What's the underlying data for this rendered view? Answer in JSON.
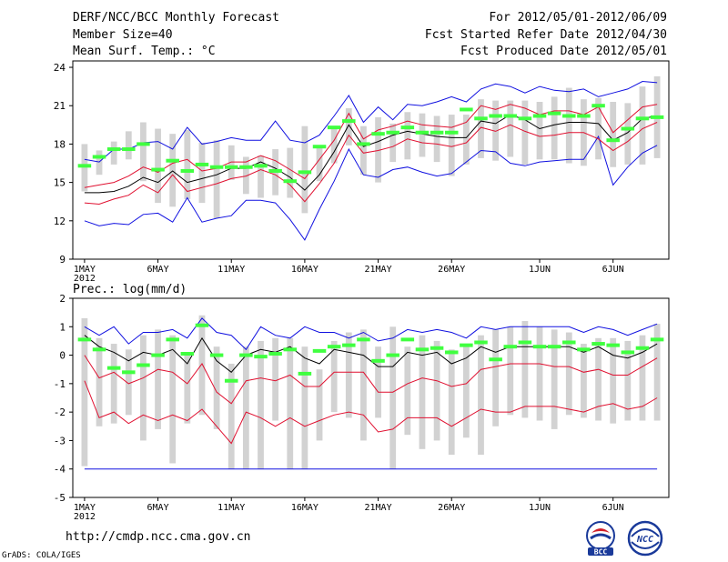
{
  "header": {
    "title": "DERF/NCC/BCC Monthly Forecast",
    "member_size": "Member Size=40",
    "variable": "Mean Surf. Temp.: °C",
    "period": "For 2012/05/01-2012/06/09",
    "started": "Fcst Started Refer Date 2012/04/30",
    "produced": "Fcst Produced Date 2012/05/01"
  },
  "footer": {
    "url": "http://cmdp.ncc.cma.gov.cn",
    "credit": "GrADS: COLA/IGES",
    "logo_bcc_text": "BCC",
    "logo_ncc_text": "NCC"
  },
  "colors": {
    "max_line": "#1010e0",
    "min_line": "#1010e0",
    "mean_line": "#000000",
    "std_line": "#e01030",
    "box": "#d2d2d2",
    "obs_marker": "#40ff40"
  },
  "chart_data": [
    {
      "type": "line",
      "title": "Mean Surf. Temp.: °C",
      "x_tick_labels": [
        "1MAY",
        "6MAY",
        "11MAY",
        "16MAY",
        "21MAY",
        "26MAY",
        "1JUN",
        "6JUN"
      ],
      "x_year_label": "2012",
      "x_tick_days": [
        1,
        6,
        11,
        16,
        21,
        26,
        32,
        37
      ],
      "days": 40,
      "ylim": [
        9,
        24.5
      ],
      "yticks": [
        9,
        12,
        15,
        18,
        21,
        24
      ],
      "series": [
        {
          "name": "max",
          "values": [
            16.8,
            16.6,
            17.6,
            17.6,
            18.1,
            18.2,
            17.6,
            19.3,
            18.0,
            18.2,
            18.5,
            18.3,
            18.3,
            19.8,
            18.3,
            18.1,
            18.7,
            20.2,
            21.8,
            19.7,
            20.9,
            19.9,
            21.1,
            21.0,
            21.3,
            21.7,
            21.3,
            22.3,
            22.7,
            22.5,
            22.0,
            22.5,
            22.2,
            22.1,
            22.3,
            21.7,
            22.0,
            22.3,
            22.9,
            22.8
          ]
        },
        {
          "name": "mean_plus_std",
          "values": [
            14.6,
            14.8,
            15.0,
            15.5,
            16.2,
            15.8,
            16.5,
            16.8,
            15.9,
            16.1,
            16.6,
            16.6,
            17.1,
            16.7,
            16.0,
            15.3,
            16.8,
            18.3,
            20.4,
            18.4,
            19.1,
            19.4,
            19.8,
            19.5,
            19.4,
            19.3,
            19.7,
            21.0,
            20.7,
            21.1,
            20.8,
            20.3,
            20.6,
            20.6,
            20.3,
            20.9,
            18.9,
            19.9,
            20.9,
            21.1
          ]
        },
        {
          "name": "mean",
          "values": [
            14.2,
            14.2,
            14.3,
            14.7,
            15.4,
            15.0,
            15.9,
            15.0,
            15.3,
            15.6,
            16.1,
            16.1,
            16.6,
            16.1,
            15.4,
            14.4,
            15.6,
            17.4,
            19.5,
            17.8,
            18.2,
            18.7,
            19.0,
            18.8,
            18.6,
            18.5,
            18.5,
            19.8,
            19.6,
            20.3,
            19.9,
            19.2,
            19.5,
            19.7,
            19.7,
            19.6,
            18.3,
            18.9,
            20.0,
            20.2
          ]
        },
        {
          "name": "mean_minus_std",
          "values": [
            13.4,
            13.3,
            13.7,
            14.0,
            14.8,
            14.2,
            15.6,
            14.3,
            14.6,
            14.9,
            15.3,
            15.5,
            16.0,
            15.6,
            14.8,
            13.5,
            14.9,
            16.5,
            18.7,
            17.3,
            17.5,
            17.8,
            18.4,
            18.1,
            18.0,
            17.8,
            18.1,
            19.3,
            19.0,
            19.5,
            19.0,
            18.6,
            18.7,
            18.9,
            18.9,
            18.4,
            17.5,
            18.2,
            19.2,
            19.7
          ]
        },
        {
          "name": "min",
          "values": [
            12.0,
            11.6,
            11.8,
            11.7,
            12.5,
            12.6,
            11.9,
            13.8,
            11.9,
            12.2,
            12.4,
            13.6,
            13.6,
            13.4,
            12.1,
            10.5,
            12.9,
            15.1,
            17.6,
            15.6,
            15.4,
            16.0,
            16.2,
            15.8,
            15.5,
            15.7,
            16.6,
            17.5,
            17.4,
            16.5,
            16.3,
            16.6,
            16.7,
            16.8,
            16.8,
            18.6,
            14.8,
            16.2,
            17.3,
            17.9
          ]
        },
        {
          "name": "box_top",
          "values": [
            18.0,
            17.5,
            18.2,
            19.0,
            19.7,
            19.2,
            18.8,
            19.1,
            18.1,
            18.3,
            17.9,
            17.0,
            17.1,
            17.6,
            17.7,
            19.4,
            17.7,
            19.4,
            20.8,
            19.4,
            20.1,
            19.6,
            20.5,
            20.4,
            20.2,
            20.3,
            20.3,
            21.5,
            21.4,
            21.4,
            21.4,
            21.3,
            21.7,
            22.4,
            21.5,
            21.6,
            21.3,
            21.2,
            22.5,
            23.3
          ]
        },
        {
          "name": "box_bottom",
          "values": [
            14.3,
            15.6,
            16.4,
            16.8,
            15.1,
            13.4,
            13.1,
            13.7,
            13.4,
            12.2,
            15.2,
            14.1,
            13.8,
            14.0,
            13.8,
            12.6,
            15.1,
            16.5,
            17.9,
            15.6,
            15.0,
            16.6,
            16.8,
            17.0,
            16.6,
            15.5,
            16.4,
            16.9,
            16.7,
            17.0,
            16.4,
            16.8,
            16.8,
            16.5,
            16.3,
            16.8,
            16.2,
            16.4,
            16.4,
            16.9
          ]
        },
        {
          "name": "observed",
          "values": [
            16.3,
            17.0,
            17.6,
            17.6,
            18.0,
            16.0,
            16.7,
            15.9,
            16.4,
            16.2,
            16.2,
            16.2,
            16.3,
            15.9,
            15.1,
            15.8,
            17.8,
            19.3,
            19.8,
            18.0,
            18.8,
            18.9,
            19.3,
            18.9,
            18.9,
            18.9,
            20.7,
            20.0,
            20.2,
            20.2,
            20.0,
            20.2,
            20.4,
            20.2,
            20.2,
            21.0,
            18.3,
            19.2,
            20.0,
            20.1
          ]
        }
      ]
    },
    {
      "type": "line",
      "title": "Prec.: log(mm/d)",
      "x_tick_labels": [
        "1MAY",
        "6MAY",
        "11MAY",
        "16MAY",
        "21MAY",
        "26MAY",
        "1JUN",
        "6JUN"
      ],
      "x_year_label": "2012",
      "x_tick_days": [
        1,
        6,
        11,
        16,
        21,
        26,
        32,
        37
      ],
      "days": 40,
      "ylim": [
        -5,
        2
      ],
      "yticks": [
        -5,
        -4,
        -3,
        -2,
        -1,
        0,
        1,
        2
      ],
      "series": [
        {
          "name": "max",
          "values": [
            1.0,
            0.7,
            1.0,
            0.4,
            0.8,
            0.8,
            0.9,
            0.6,
            1.3,
            0.8,
            0.7,
            0.2,
            1.0,
            0.7,
            0.6,
            1.0,
            0.8,
            0.8,
            0.6,
            0.8,
            0.5,
            0.6,
            0.9,
            0.8,
            0.9,
            0.8,
            0.6,
            1.0,
            0.9,
            1.0,
            1.0,
            1.0,
            1.0,
            1.0,
            0.8,
            1.0,
            0.9,
            0.7,
            0.9,
            1.1
          ]
        },
        {
          "name": "mean",
          "values": [
            0.7,
            0.3,
            0.1,
            -0.2,
            0.1,
            0.0,
            0.2,
            -0.3,
            0.6,
            -0.2,
            -0.6,
            0.0,
            0.2,
            0.1,
            0.3,
            -0.1,
            -0.3,
            0.2,
            0.1,
            0.0,
            -0.4,
            -0.4,
            0.1,
            0.0,
            0.1,
            -0.3,
            -0.1,
            0.3,
            0.1,
            0.3,
            0.3,
            0.3,
            0.3,
            0.3,
            0.1,
            0.3,
            0.0,
            -0.1,
            0.1,
            0.4
          ]
        },
        {
          "name": "mean_minus_std",
          "values": [
            0.0,
            -0.8,
            -0.6,
            -1.0,
            -0.8,
            -0.5,
            -0.6,
            -1.0,
            -0.3,
            -1.3,
            -1.7,
            -0.9,
            -0.8,
            -0.9,
            -0.7,
            -1.1,
            -1.1,
            -0.6,
            -0.6,
            -0.6,
            -1.3,
            -1.3,
            -1.0,
            -0.8,
            -0.9,
            -1.1,
            -1.0,
            -0.5,
            -0.4,
            -0.3,
            -0.3,
            -0.3,
            -0.4,
            -0.4,
            -0.6,
            -0.5,
            -0.7,
            -0.7,
            -0.4,
            -0.1
          ]
        },
        {
          "name": "mean_minus_2std",
          "values": [
            -0.9,
            -2.2,
            -2.0,
            -2.4,
            -2.1,
            -2.3,
            -2.1,
            -2.3,
            -1.9,
            -2.5,
            -3.1,
            -2.0,
            -2.2,
            -2.5,
            -2.2,
            -2.5,
            -2.3,
            -2.1,
            -2.0,
            -2.1,
            -2.7,
            -2.6,
            -2.2,
            -2.2,
            -2.2,
            -2.5,
            -2.2,
            -1.9,
            -2.0,
            -2.0,
            -1.8,
            -1.8,
            -1.8,
            -1.9,
            -2.0,
            -1.8,
            -1.7,
            -1.9,
            -1.8,
            -1.5
          ]
        },
        {
          "name": "min",
          "values": [
            -4.0,
            -4.0,
            -4.0,
            -4.0,
            -4.0,
            -4.0,
            -4.0,
            -4.0,
            -4.0,
            -4.0,
            -4.0,
            -4.0,
            -4.0,
            -4.0,
            -4.0,
            -4.0,
            -4.0,
            -4.0,
            -4.0,
            -4.0,
            -4.0,
            -4.0,
            -4.0,
            -4.0,
            -4.0,
            -4.0,
            -4.0,
            -4.0,
            -4.0,
            -4.0,
            -4.0,
            -4.0,
            -4.0,
            -4.0,
            -4.0,
            -4.0,
            -4.0,
            -4.0,
            -4.0,
            -4.0
          ]
        },
        {
          "name": "box_top",
          "values": [
            1.3,
            0.6,
            0.4,
            0.2,
            0.7,
            0.9,
            0.7,
            0.1,
            1.4,
            0.3,
            -0.3,
            0.3,
            0.5,
            0.6,
            0.6,
            0.3,
            -0.5,
            0.5,
            0.8,
            0.9,
            0.3,
            1.0,
            0.3,
            0.7,
            0.5,
            0.2,
            0.3,
            0.7,
            0.9,
            1.0,
            1.2,
            1.0,
            0.9,
            0.8,
            0.4,
            0.6,
            0.6,
            0.5,
            0.7,
            1.1
          ]
        },
        {
          "name": "box_bottom",
          "values": [
            -3.9,
            -2.5,
            -2.4,
            -2.1,
            -3.0,
            -2.6,
            -3.8,
            -2.4,
            -2.1,
            -2.6,
            -4.0,
            -4.0,
            -4.0,
            -2.3,
            -4.0,
            -4.0,
            -3.0,
            -2.0,
            -2.2,
            -3.0,
            -2.2,
            -4.0,
            -2.8,
            -3.3,
            -3.0,
            -3.5,
            -2.9,
            -3.5,
            -2.5,
            -2.1,
            -2.2,
            -2.3,
            -2.6,
            -2.1,
            -2.2,
            -2.3,
            -2.4,
            -2.3,
            -2.3,
            -2.3
          ]
        },
        {
          "name": "observed",
          "values": [
            0.55,
            0.2,
            -0.45,
            -0.6,
            -0.35,
            0.0,
            0.55,
            0.05,
            1.05,
            0.0,
            -0.9,
            0.0,
            -0.05,
            0.05,
            0.2,
            -0.65,
            0.15,
            0.3,
            0.35,
            0.55,
            -0.2,
            0.0,
            0.55,
            0.2,
            0.25,
            0.1,
            0.35,
            0.45,
            -0.15,
            0.3,
            0.45,
            0.3,
            0.3,
            0.45,
            0.2,
            0.4,
            0.35,
            0.1,
            0.25,
            0.55
          ]
        }
      ]
    }
  ]
}
